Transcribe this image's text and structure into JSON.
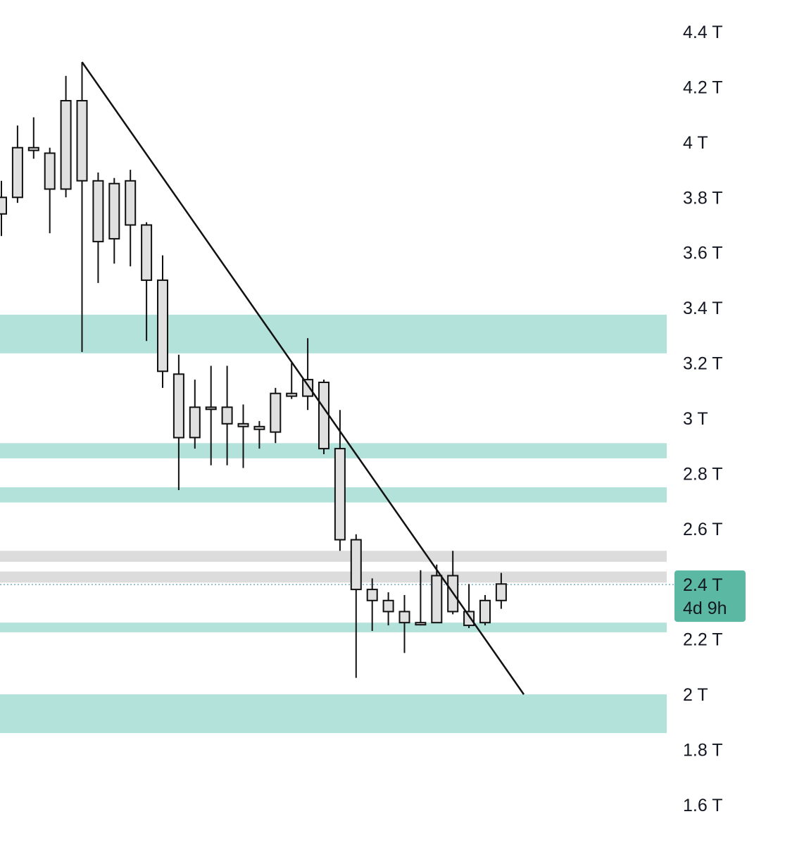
{
  "colors": {
    "zone_teal": "#b2e2da",
    "zone_gray": "#dcdcdc",
    "candle_fill": "#e0e0e0",
    "candle_stroke": "#111111",
    "trendline": "#111111",
    "price_tag_bg": "#5ab8a3",
    "current_price_line": "#5aa1b8",
    "axis_text": "#131722"
  },
  "price_tag": {
    "price": "2.4 T",
    "countdown": "4d 9h"
  },
  "chart_data": {
    "type": "candlestick",
    "y_scale_unit": "T",
    "ylim": [
      1.55,
      4.48
    ],
    "y_ticks": [
      {
        "value": 4.4,
        "label": "4.4 T"
      },
      {
        "value": 4.2,
        "label": "4.2 T"
      },
      {
        "value": 4.0,
        "label": "4 T"
      },
      {
        "value": 3.8,
        "label": "3.8 T"
      },
      {
        "value": 3.6,
        "label": "3.6 T"
      },
      {
        "value": 3.4,
        "label": "3.4 T"
      },
      {
        "value": 3.2,
        "label": "3.2 T"
      },
      {
        "value": 3.0,
        "label": "3 T"
      },
      {
        "value": 2.8,
        "label": "2.8 T"
      },
      {
        "value": 2.6,
        "label": "2.6 T"
      },
      {
        "value": 2.2,
        "label": "2.2 T"
      },
      {
        "value": 2.0,
        "label": "2 T"
      },
      {
        "value": 1.8,
        "label": "1.8 T"
      },
      {
        "value": 1.6,
        "label": "1.6 T"
      }
    ],
    "current_price": 2.398,
    "candles": [
      {
        "i": 0,
        "o": 3.74,
        "h": 3.86,
        "l": 3.66,
        "c": 3.8
      },
      {
        "i": 1,
        "o": 3.8,
        "h": 4.06,
        "l": 3.78,
        "c": 3.98
      },
      {
        "i": 2,
        "o": 3.97,
        "h": 4.09,
        "l": 3.94,
        "c": 3.98
      },
      {
        "i": 3,
        "o": 3.96,
        "h": 3.98,
        "l": 3.67,
        "c": 3.83
      },
      {
        "i": 4,
        "o": 3.83,
        "h": 4.24,
        "l": 3.8,
        "c": 4.15
      },
      {
        "i": 5,
        "o": 4.15,
        "h": 4.29,
        "l": 3.24,
        "c": 3.86
      },
      {
        "i": 6,
        "o": 3.86,
        "h": 3.89,
        "l": 3.49,
        "c": 3.64
      },
      {
        "i": 7,
        "o": 3.85,
        "h": 3.87,
        "l": 3.56,
        "c": 3.65
      },
      {
        "i": 8,
        "o": 3.86,
        "h": 3.9,
        "l": 3.55,
        "c": 3.7
      },
      {
        "i": 9,
        "o": 3.7,
        "h": 3.71,
        "l": 3.28,
        "c": 3.5
      },
      {
        "i": 10,
        "o": 3.5,
        "h": 3.59,
        "l": 3.11,
        "c": 3.17
      },
      {
        "i": 11,
        "o": 3.16,
        "h": 3.23,
        "l": 2.74,
        "c": 2.93
      },
      {
        "i": 12,
        "o": 2.93,
        "h": 3.14,
        "l": 2.89,
        "c": 3.04
      },
      {
        "i": 13,
        "o": 3.04,
        "h": 3.19,
        "l": 2.83,
        "c": 3.04
      },
      {
        "i": 14,
        "o": 3.04,
        "h": 3.19,
        "l": 2.83,
        "c": 2.98
      },
      {
        "i": 15,
        "o": 2.98,
        "h": 3.05,
        "l": 2.82,
        "c": 2.97
      },
      {
        "i": 16,
        "o": 2.97,
        "h": 2.99,
        "l": 2.89,
        "c": 2.96
      },
      {
        "i": 17,
        "o": 2.95,
        "h": 3.11,
        "l": 2.91,
        "c": 3.09
      },
      {
        "i": 18,
        "o": 3.08,
        "h": 3.2,
        "l": 3.07,
        "c": 3.09
      },
      {
        "i": 19,
        "o": 3.08,
        "h": 3.29,
        "l": 3.03,
        "c": 3.14
      },
      {
        "i": 20,
        "o": 3.13,
        "h": 3.14,
        "l": 2.87,
        "c": 2.89
      },
      {
        "i": 21,
        "o": 2.89,
        "h": 3.03,
        "l": 2.52,
        "c": 2.56
      },
      {
        "i": 22,
        "o": 2.56,
        "h": 2.58,
        "l": 2.06,
        "c": 2.38
      },
      {
        "i": 23,
        "o": 2.38,
        "h": 2.42,
        "l": 2.23,
        "c": 2.34
      },
      {
        "i": 24,
        "o": 2.34,
        "h": 2.37,
        "l": 2.25,
        "c": 2.3
      },
      {
        "i": 25,
        "o": 2.3,
        "h": 2.36,
        "l": 2.15,
        "c": 2.26
      },
      {
        "i": 26,
        "o": 2.26,
        "h": 2.45,
        "l": 2.25,
        "c": 2.26
      },
      {
        "i": 27,
        "o": 2.26,
        "h": 2.47,
        "l": 2.26,
        "c": 2.43
      },
      {
        "i": 28,
        "o": 2.43,
        "h": 2.52,
        "l": 2.29,
        "c": 2.3
      },
      {
        "i": 29,
        "o": 2.3,
        "h": 2.4,
        "l": 2.24,
        "c": 2.25
      },
      {
        "i": 30,
        "o": 2.26,
        "h": 2.36,
        "l": 2.25,
        "c": 2.34
      },
      {
        "i": 31,
        "o": 2.34,
        "h": 2.44,
        "l": 2.31,
        "c": 2.4
      }
    ],
    "zones": [
      {
        "low": 3.235,
        "high": 3.375,
        "color": "teal"
      },
      {
        "low": 2.855,
        "high": 2.91,
        "color": "teal"
      },
      {
        "low": 2.695,
        "high": 2.75,
        "color": "teal"
      },
      {
        "low": 2.48,
        "high": 2.52,
        "color": "gray"
      },
      {
        "low": 2.405,
        "high": 2.445,
        "color": "gray"
      },
      {
        "low": 2.225,
        "high": 2.26,
        "color": "teal"
      },
      {
        "low": 1.86,
        "high": 2.0,
        "color": "teal"
      }
    ],
    "trendline": {
      "from": {
        "candle": 5,
        "price": 4.29
      },
      "to": {
        "candle": 32.4,
        "price": 2.0
      }
    }
  }
}
